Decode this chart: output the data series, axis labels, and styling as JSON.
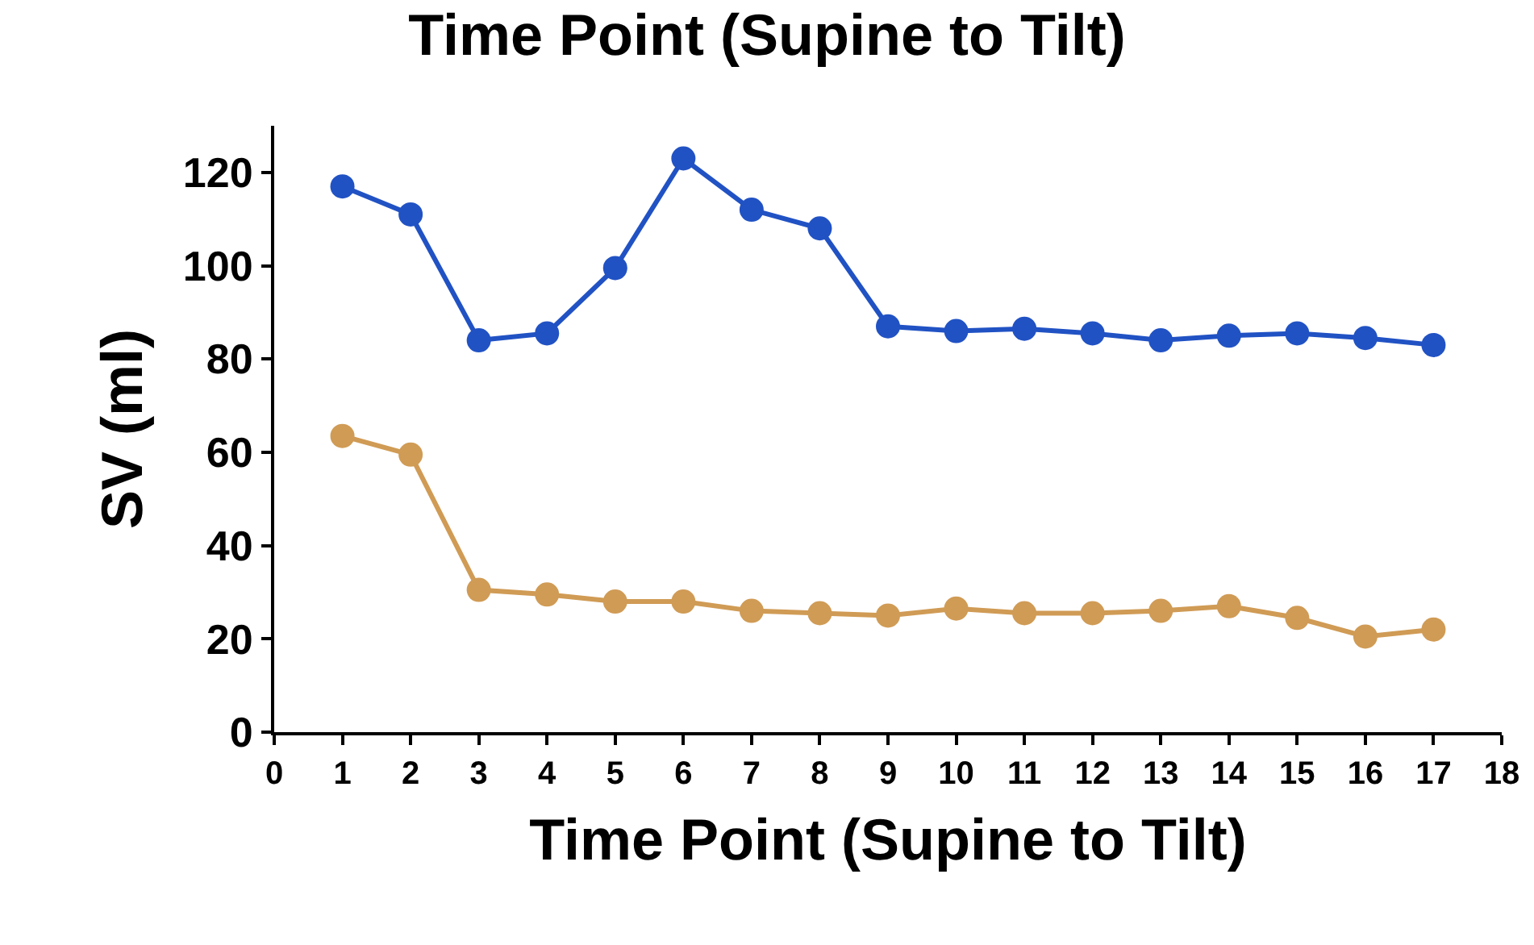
{
  "chart_data": {
    "type": "line",
    "title": "Time Point (Supine to Tilt)",
    "xlabel": "Time Point (Supine to Tilt)",
    "ylabel": "SV (ml)",
    "x": [
      1,
      2,
      3,
      4,
      5,
      6,
      7,
      8,
      9,
      10,
      11,
      12,
      13,
      14,
      15,
      16,
      17
    ],
    "series": [
      {
        "color": "#2152c4",
        "values": [
          117,
          111,
          84,
          85.5,
          99.5,
          123,
          112,
          108,
          87,
          86,
          86.5,
          85.5,
          84,
          85,
          85.5,
          84.5,
          83
        ]
      },
      {
        "color": "#d09b55",
        "values": [
          63.5,
          59.5,
          30.5,
          29.5,
          28,
          28,
          26,
          25.5,
          25,
          26.5,
          25.5,
          25.5,
          26,
          27,
          24.5,
          20.5,
          22
        ]
      }
    ],
    "xlim": [
      0,
      18
    ],
    "xticks": [
      0,
      1,
      2,
      3,
      4,
      5,
      6,
      7,
      8,
      9,
      10,
      11,
      12,
      13,
      14,
      15,
      16,
      17,
      18
    ],
    "ylim": [
      0,
      130
    ],
    "yticks": [
      0,
      20,
      40,
      60,
      80,
      100,
      120
    ],
    "grid": false,
    "marker": "circle",
    "line_style": "solid"
  }
}
